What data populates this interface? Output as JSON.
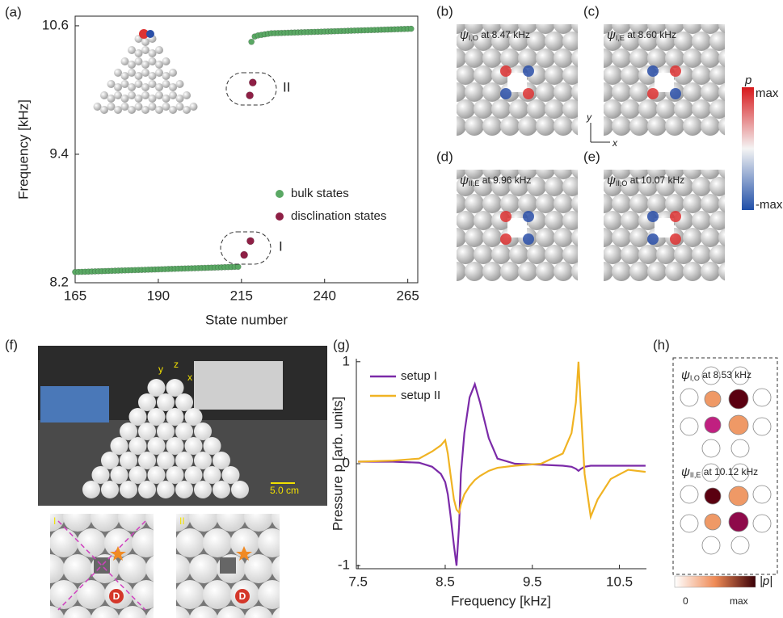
{
  "chart_data": [
    {
      "type": "scatter",
      "panel": "(a)",
      "xlabel": "State number",
      "ylabel": "Frequency [kHz]",
      "xlim": [
        165,
        268
      ],
      "ylim": [
        8.2,
        10.69
      ],
      "xticks": [
        165,
        190,
        215,
        240,
        265
      ],
      "yticks": [
        8.2,
        9.4,
        10.6
      ],
      "series": [
        {
          "name": "bulk states",
          "color": "#5aa864",
          "x": [
            165,
            166,
            167,
            168,
            169,
            170,
            171,
            172,
            173,
            174,
            175,
            176,
            177,
            178,
            179,
            180,
            181,
            182,
            183,
            184,
            185,
            186,
            187,
            188,
            189,
            190,
            191,
            192,
            193,
            194,
            195,
            196,
            197,
            198,
            199,
            200,
            201,
            202,
            203,
            204,
            205,
            206,
            207,
            208,
            209,
            210,
            211,
            212,
            213,
            214,
            218,
            219,
            220,
            221,
            222,
            223,
            224,
            225,
            226,
            227,
            228,
            229,
            230,
            231,
            232,
            233,
            234,
            235,
            236,
            237,
            238,
            239,
            240,
            241,
            242,
            243,
            244,
            245,
            246,
            247,
            248,
            249,
            250,
            251,
            252,
            253,
            254,
            255,
            256,
            257,
            258,
            259,
            260,
            261,
            262,
            263,
            264,
            265,
            266
          ],
          "values": [
            8.3,
            8.301,
            8.302,
            8.303,
            8.304,
            8.305,
            8.306,
            8.307,
            8.308,
            8.309,
            8.31,
            8.311,
            8.312,
            8.313,
            8.314,
            8.315,
            8.316,
            8.317,
            8.318,
            8.319,
            8.32,
            8.321,
            8.322,
            8.323,
            8.324,
            8.325,
            8.326,
            8.327,
            8.328,
            8.329,
            8.33,
            8.331,
            8.332,
            8.333,
            8.334,
            8.335,
            8.336,
            8.337,
            8.338,
            8.339,
            8.34,
            8.341,
            8.342,
            8.343,
            8.344,
            8.345,
            8.346,
            8.347,
            8.348,
            8.349,
            10.45,
            10.5,
            10.51,
            10.515,
            10.52,
            10.525,
            10.53,
            10.531,
            10.532,
            10.533,
            10.534,
            10.535,
            10.536,
            10.537,
            10.538,
            10.539,
            10.54,
            10.541,
            10.542,
            10.543,
            10.544,
            10.545,
            10.546,
            10.547,
            10.548,
            10.549,
            10.55,
            10.551,
            10.552,
            10.553,
            10.554,
            10.555,
            10.556,
            10.557,
            10.558,
            10.559,
            10.56,
            10.561,
            10.562,
            10.563,
            10.564,
            10.565,
            10.566,
            10.567,
            10.568,
            10.569,
            10.57,
            10.571,
            10.572
          ]
        },
        {
          "name": "disclination states",
          "color": "#8e1f45",
          "x": [
            215.8,
            217.7,
            217.5,
            218.4
          ],
          "values": [
            8.46,
            8.59,
            9.95,
            10.07
          ]
        }
      ],
      "annotations": [
        "I",
        "II"
      ]
    },
    {
      "type": "line",
      "panel": "(g)",
      "xlabel": "Frequency [kHz]",
      "ylabel": "Pressure p [arb. units]",
      "xlim": [
        7.48,
        10.81
      ],
      "ylim": [
        -1.03,
        1.03
      ],
      "xticks": [
        7.5,
        8.5,
        9.5,
        10.5
      ],
      "yticks": [
        -1,
        0,
        1
      ],
      "x": [
        7.5,
        7.9,
        8.2,
        8.35,
        8.45,
        8.5,
        8.53,
        8.56,
        8.6,
        8.63,
        8.66,
        8.68,
        8.72,
        8.78,
        8.84,
        8.9,
        9.0,
        9.1,
        9.3,
        9.6,
        9.85,
        9.95,
        10.0,
        10.03,
        10.06,
        10.1,
        10.17,
        10.25,
        10.4,
        10.6,
        10.8
      ],
      "series": [
        {
          "name": "setup I",
          "color": "#7b2aa8",
          "values": [
            0.02,
            0.02,
            0.01,
            -0.03,
            -0.1,
            -0.18,
            -0.3,
            -0.5,
            -0.8,
            -1.0,
            -0.6,
            -0.1,
            0.3,
            0.65,
            0.78,
            0.6,
            0.25,
            0.05,
            0.0,
            -0.01,
            -0.02,
            -0.03,
            -0.05,
            -0.07,
            -0.05,
            -0.03,
            -0.02,
            -0.02,
            -0.02,
            -0.02,
            -0.02
          ]
        },
        {
          "name": "setup II",
          "color": "#f0b323",
          "values": [
            0.02,
            0.03,
            0.05,
            0.12,
            0.18,
            0.23,
            0.1,
            -0.1,
            -0.35,
            -0.45,
            -0.48,
            -0.4,
            -0.3,
            -0.22,
            -0.16,
            -0.12,
            -0.07,
            -0.04,
            -0.02,
            0.0,
            0.1,
            0.3,
            0.6,
            1.0,
            0.5,
            -0.1,
            -0.52,
            -0.35,
            -0.15,
            -0.06,
            -0.08
          ]
        }
      ]
    }
  ],
  "modes": [
    {
      "label": "(b)",
      "psi": "ψ",
      "sub": "I,O",
      "text": " at 8.47 kHz"
    },
    {
      "label": "(c)",
      "psi": "ψ",
      "sub": "I,E",
      "text": " at 8.60 kHz"
    },
    {
      "label": "(d)",
      "psi": "ψ",
      "sub": "II,E",
      "text": " at 9.96 kHz"
    },
    {
      "label": "(e)",
      "psi": "ψ",
      "sub": "II,O",
      "text": " at 10.07 kHz"
    }
  ],
  "colorbar": {
    "symbol": "p",
    "max": "max",
    "min": "-max"
  },
  "axes_hint": {
    "y": "y",
    "x": "x"
  },
  "photo": {
    "label": "(f)",
    "scale": "5.0 cm",
    "axes": [
      "y",
      "z",
      "x"
    ],
    "inset1": "I",
    "inset2": "II",
    "marker": "D"
  },
  "field": {
    "label": "(h)",
    "modes": [
      {
        "psi": "ψ",
        "sub": "I,O",
        "text": " at 8.53 kHz"
      },
      {
        "psi": "ψ",
        "sub": "II,E",
        "text": " at 10.12 kHz"
      }
    ],
    "bar_min": "0",
    "bar_max": "max",
    "bar_symbol": "|p|"
  }
}
